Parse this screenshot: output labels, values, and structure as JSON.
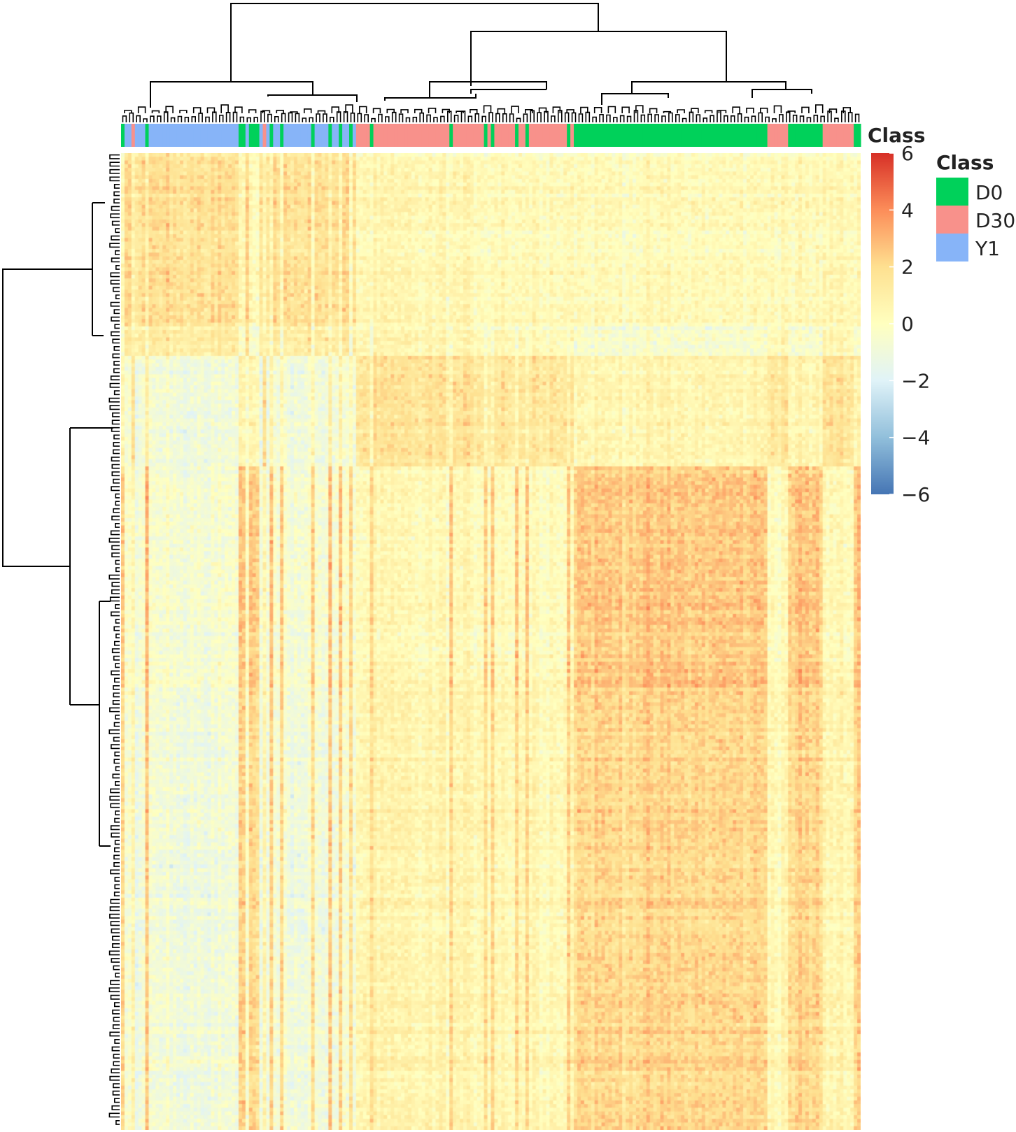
{
  "chart_data": {
    "type": "heatmap",
    "title": "",
    "xlabel": "",
    "ylabel": "",
    "annotation": {
      "name": "Class",
      "sample_classes_in_column_order": [
        "D0",
        "Y1",
        "Y1",
        "D30",
        "Y1",
        "Y1",
        "Y1",
        "D0",
        "Y1",
        "Y1",
        "Y1",
        "Y1",
        "Y1",
        "Y1",
        "Y1",
        "Y1",
        "Y1",
        "Y1",
        "Y1",
        "Y1",
        "Y1",
        "Y1",
        "Y1",
        "Y1",
        "Y1",
        "Y1",
        "Y1",
        "Y1",
        "Y1",
        "Y1",
        "Y1",
        "Y1",
        "Y1",
        "Y1",
        "D0",
        "D0",
        "Y1",
        "D0",
        "D0",
        "D0",
        "Y1",
        "D30",
        "Y1",
        "D0",
        "Y1",
        "Y1",
        "D0",
        "Y1",
        "Y1",
        "Y1",
        "Y1",
        "Y1",
        "Y1",
        "Y1",
        "Y1",
        "D0",
        "Y1",
        "Y1",
        "Y1",
        "Y1",
        "D0",
        "Y1",
        "Y1",
        "D0",
        "Y1",
        "Y1",
        "D0",
        "Y1",
        "D30",
        "D30",
        "D30",
        "D30",
        "D0",
        "D30",
        "D30",
        "D30",
        "D30",
        "D30",
        "D30",
        "D30",
        "D30",
        "D30",
        "D30",
        "D30",
        "D30",
        "D30",
        "D30",
        "D30",
        "D30",
        "D30",
        "D30",
        "D30",
        "D30",
        "D30",
        "D30",
        "D0",
        "D30",
        "D30",
        "D30",
        "D30",
        "D30",
        "D30",
        "D30",
        "D30",
        "D30",
        "D0",
        "D30",
        "D0",
        "D30",
        "D30",
        "D30",
        "D30",
        "D30",
        "D30",
        "D0",
        "D30",
        "D30",
        "D0",
        "D30",
        "D30",
        "D30",
        "D30",
        "D30",
        "D30",
        "D30",
        "D30",
        "D30",
        "D30",
        "D30",
        "D0",
        "D30",
        "D0",
        "D0",
        "D0",
        "D0",
        "D0",
        "D0",
        "D0",
        "D0",
        "D0",
        "D0",
        "D0",
        "D0",
        "D0",
        "D0",
        "D0",
        "D0",
        "D0",
        "D0",
        "D0",
        "D0",
        "D0",
        "D0",
        "D0",
        "D0",
        "D0",
        "D0",
        "D0",
        "D0",
        "D0",
        "D0",
        "D0",
        "D0",
        "D0",
        "D0",
        "D0",
        "D0",
        "D0",
        "D0",
        "D0",
        "D0",
        "D0",
        "D0",
        "D0",
        "D0",
        "D0",
        "D0",
        "D0",
        "D0",
        "D0",
        "D0",
        "D0",
        "D0",
        "D0",
        "D0",
        "D0",
        "D0",
        "D30",
        "D30",
        "D30",
        "D30",
        "D30",
        "D30",
        "D0",
        "D0",
        "D0",
        "D0",
        "D0",
        "D0",
        "D0",
        "D0",
        "D0",
        "D0",
        "D30",
        "D30",
        "D30",
        "D30",
        "D30",
        "D30",
        "D30",
        "D30",
        "D30",
        "D0",
        "D0"
      ]
    },
    "gene_clusters_row_order": [
      {
        "rows": 47,
        "means": {
          "D0": 0.3,
          "D30": 0.5,
          "Y1": 2.2
        }
      },
      {
        "rows": 8,
        "means": {
          "D0": -0.5,
          "D30": 0.6,
          "Y1": 1.5
        }
      },
      {
        "rows": 30,
        "means": {
          "D0": 0.8,
          "D30": 2.0,
          "Y1": -0.8
        }
      },
      {
        "rows": 60,
        "means": {
          "D0": 3.0,
          "D30": 0.4,
          "Y1": -0.5
        }
      },
      {
        "rows": 120,
        "means": {
          "D0": 2.5,
          "D30": 0.7,
          "Y1": -0.9
        }
      }
    ],
    "colorbar": {
      "colors": [
        "#4575b4",
        "#91bfdb",
        "#e0f3f8",
        "#ffffbf",
        "#fee090",
        "#fc8d59",
        "#d73027"
      ],
      "ticks": [
        "6",
        "4",
        "2",
        "0",
        "−2",
        "−4",
        "−6"
      ],
      "min": -6,
      "max": 6
    },
    "legend": {
      "title": "Class",
      "placement": "right",
      "items": [
        {
          "label": "D0",
          "color": "#00d15a"
        },
        {
          "label": "D30",
          "color": "#f8918b"
        },
        {
          "label": "Y1",
          "color": "#87b4f8"
        }
      ]
    }
  }
}
